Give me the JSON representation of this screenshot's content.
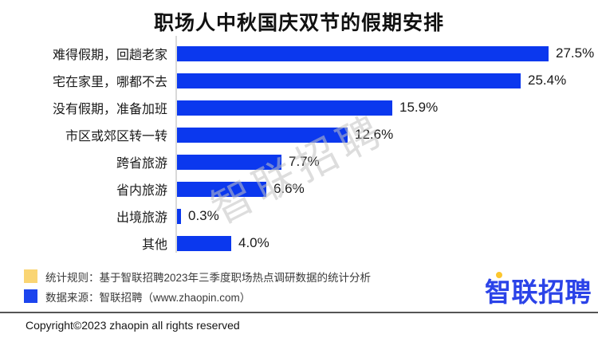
{
  "title": "职场人中秋国庆双节的假期安排",
  "watermark": {
    "text": "智联招聘"
  },
  "chart_data": {
    "type": "bar",
    "orientation": "horizontal",
    "title": "职场人中秋国庆双节的假期安排",
    "xlabel": "",
    "ylabel": "",
    "grid": false,
    "legend_position": "none",
    "xlim": [
      0,
      28.5
    ],
    "categories": [
      "难得假期，回趟老家",
      "宅在家里，哪都不去",
      "没有假期，准备加班",
      "市区或郊区转一转",
      "跨省旅游",
      "省内旅游",
      "出境旅游",
      "其他"
    ],
    "values": [
      27.5,
      25.4,
      15.9,
      12.6,
      7.7,
      6.6,
      0.3,
      4.0
    ],
    "value_labels": [
      "27.5%",
      "25.4%",
      "15.9%",
      "12.6%",
      "7.7%",
      "6.6%",
      "0.3%",
      "4.0%"
    ]
  },
  "legend": {
    "items": [
      {
        "swatch_color": "#fad573",
        "text": "统计规则：基于智联招聘2023年三季度职场热点调研数据的统计分析"
      },
      {
        "swatch_color": "#1c44ee",
        "text": "数据来源：智联招聘（www.zhaopin.com）"
      }
    ]
  },
  "logo": {
    "text": "智联招聘"
  },
  "footer": {
    "copyright": "Copyright©2023 zhaopin all rights reserved"
  },
  "colors": {
    "bar": "#0b38ee",
    "axis_line": "#d9d9d9",
    "logo_blue": "#2b43e8",
    "logo_ring_yellow": "#fcc62e",
    "watermark_gray": "#c3c3c3",
    "divider_gray": "#555555"
  }
}
